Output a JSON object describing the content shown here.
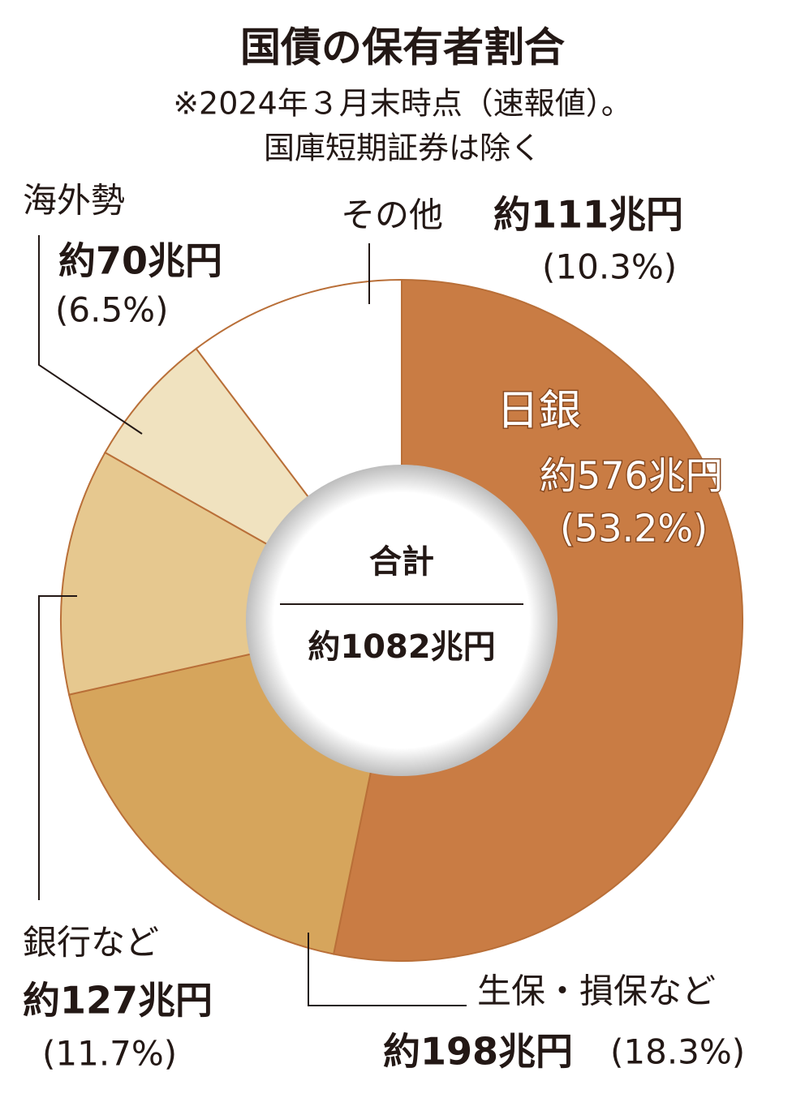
{
  "chart_data": {
    "type": "pie",
    "title": "国債の保有者割合",
    "subtitle": [
      "※2024年３月末時点（速報値）。",
      "国庫短期証券は除く"
    ],
    "categories": [
      "日銀",
      "生保・損保など",
      "銀行など",
      "海外勢",
      "その他"
    ],
    "values": [
      53.2,
      18.3,
      11.7,
      6.5,
      10.3
    ],
    "value_labels": [
      "(53.2%)",
      "(18.3%)",
      "(11.7%)",
      "(6.5%)",
      "(10.3%)"
    ],
    "amount_labels": [
      "約576兆円",
      "約198兆円",
      "約127兆円",
      "約70兆円",
      "約111兆円"
    ],
    "colors": [
      "#c97c44",
      "#d6a55c",
      "#e6c88f",
      "#f0e2bf",
      "#ffffff"
    ],
    "center_label": "合計",
    "center_value": "約1082兆円"
  }
}
